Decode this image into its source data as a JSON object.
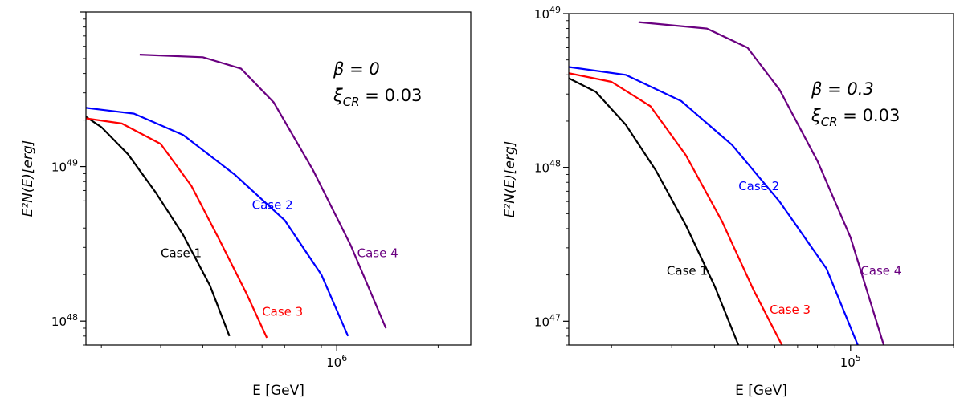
{
  "chart_data": [
    {
      "type": "line",
      "panel": "left",
      "xlabel": "E [GeV]",
      "ylabel": "E²N(E)[erg]",
      "xscale": "log",
      "yscale": "log",
      "xlim": [
        180000,
        2500000
      ],
      "ylim": [
        7e+47,
        1e+50
      ],
      "x_tick_labels": [
        {
          "value": 1000000,
          "base": "10",
          "exp": "6"
        }
      ],
      "y_tick_labels": [
        {
          "value": 1e+48,
          "base": "10",
          "exp": "48"
        },
        {
          "value": 1e+49,
          "base": "10",
          "exp": "49"
        }
      ],
      "annotation": {
        "beta": "β = 0",
        "xi_sym": "ξ",
        "xi_sub": "CR",
        "xi_val": " = 0.03"
      },
      "series": [
        {
          "name": "Case 1",
          "color": "#000000",
          "x": [
            180000,
            200000,
            240000,
            290000,
            350000,
            420000,
            480000
          ],
          "y": [
            2.1e+49,
            1.8e+49,
            1.2e+49,
            6.8e+48,
            3.6e+48,
            1.7e+48,
            8e+47
          ],
          "label_at": {
            "x": 300000,
            "y": 2.6e+48
          }
        },
        {
          "name": "Case 2",
          "color": "#0000ff",
          "x": [
            180000,
            250000,
            350000,
            500000,
            700000,
            900000,
            1080000
          ],
          "y": [
            2.4e+49,
            2.2e+49,
            1.6e+49,
            8.8e+48,
            4.5e+48,
            2e+48,
            8e+47
          ],
          "label_at": {
            "x": 560000,
            "y": 5.3e+48
          }
        },
        {
          "name": "Case 3",
          "color": "#ff0000",
          "x": [
            180000,
            230000,
            300000,
            370000,
            450000,
            540000,
            620000
          ],
          "y": [
            2.05e+49,
            1.9e+49,
            1.4e+49,
            7.5e+48,
            3.3e+48,
            1.5e+48,
            7.8e+47
          ],
          "label_at": {
            "x": 600000,
            "y": 1.08e+48
          }
        },
        {
          "name": "Case 4",
          "color": "#6a0080",
          "x": [
            260000,
            400000,
            520000,
            650000,
            850000,
            1100000,
            1400000
          ],
          "y": [
            5.3e+49,
            5.1e+49,
            4.3e+49,
            2.6e+49,
            9.5e+48,
            3.1e+48,
            9e+47
          ],
          "label_at": {
            "x": 1150000,
            "y": 2.6e+48
          }
        }
      ]
    },
    {
      "type": "line",
      "panel": "right",
      "xlabel": "E [GeV]",
      "ylabel": "E²N(E)[erg]",
      "xscale": "log",
      "yscale": "log",
      "xlim": [
        15000,
        200000
      ],
      "ylim": [
        7e+46,
        1e+49
      ],
      "x_tick_labels": [
        {
          "value": 100000,
          "base": "10",
          "exp": "5"
        }
      ],
      "y_tick_labels": [
        {
          "value": 1e+47,
          "base": "10",
          "exp": "47"
        },
        {
          "value": 1e+48,
          "base": "10",
          "exp": "48"
        },
        {
          "value": 1e+49,
          "base": "10",
          "exp": "49"
        }
      ],
      "annotation": {
        "beta": "β = 0.3",
        "xi_sym": "ξ",
        "xi_sub": "CR",
        "xi_val": " = 0.03"
      },
      "series": [
        {
          "name": "Case 1",
          "color": "#000000",
          "x": [
            15000,
            18000,
            22000,
            27000,
            33000,
            40000,
            47000
          ],
          "y": [
            3.8e+48,
            3.1e+48,
            1.9e+48,
            9.5e+47,
            4.2e+47,
            1.7e+47,
            7e+46
          ],
          "label_at": {
            "x": 29000,
            "y": 2e+47
          }
        },
        {
          "name": "Case 2",
          "color": "#0000ff",
          "x": [
            15000,
            22000,
            32000,
            45000,
            62000,
            85000,
            105000
          ],
          "y": [
            4.5e+48,
            4e+48,
            2.7e+48,
            1.4e+48,
            6e+47,
            2.2e+47,
            7e+46
          ],
          "label_at": {
            "x": 47000,
            "y": 7.1e+47
          }
        },
        {
          "name": "Case 3",
          "color": "#ff0000",
          "x": [
            15000,
            20000,
            26000,
            33000,
            42000,
            52000,
            63000
          ],
          "y": [
            4.1e+48,
            3.6e+48,
            2.5e+48,
            1.2e+48,
            4.5e+47,
            1.6e+47,
            7e+46
          ],
          "label_at": {
            "x": 58000,
            "y": 1.12e+47
          }
        },
        {
          "name": "Case 4",
          "color": "#6a0080",
          "x": [
            24000,
            38000,
            50000,
            62000,
            80000,
            100000,
            125000
          ],
          "y": [
            8.8e+48,
            8e+48,
            6e+48,
            3.2e+48,
            1.1e+48,
            3.5e+47,
            7e+46
          ],
          "label_at": {
            "x": 107000,
            "y": 2e+47
          }
        }
      ]
    }
  ]
}
